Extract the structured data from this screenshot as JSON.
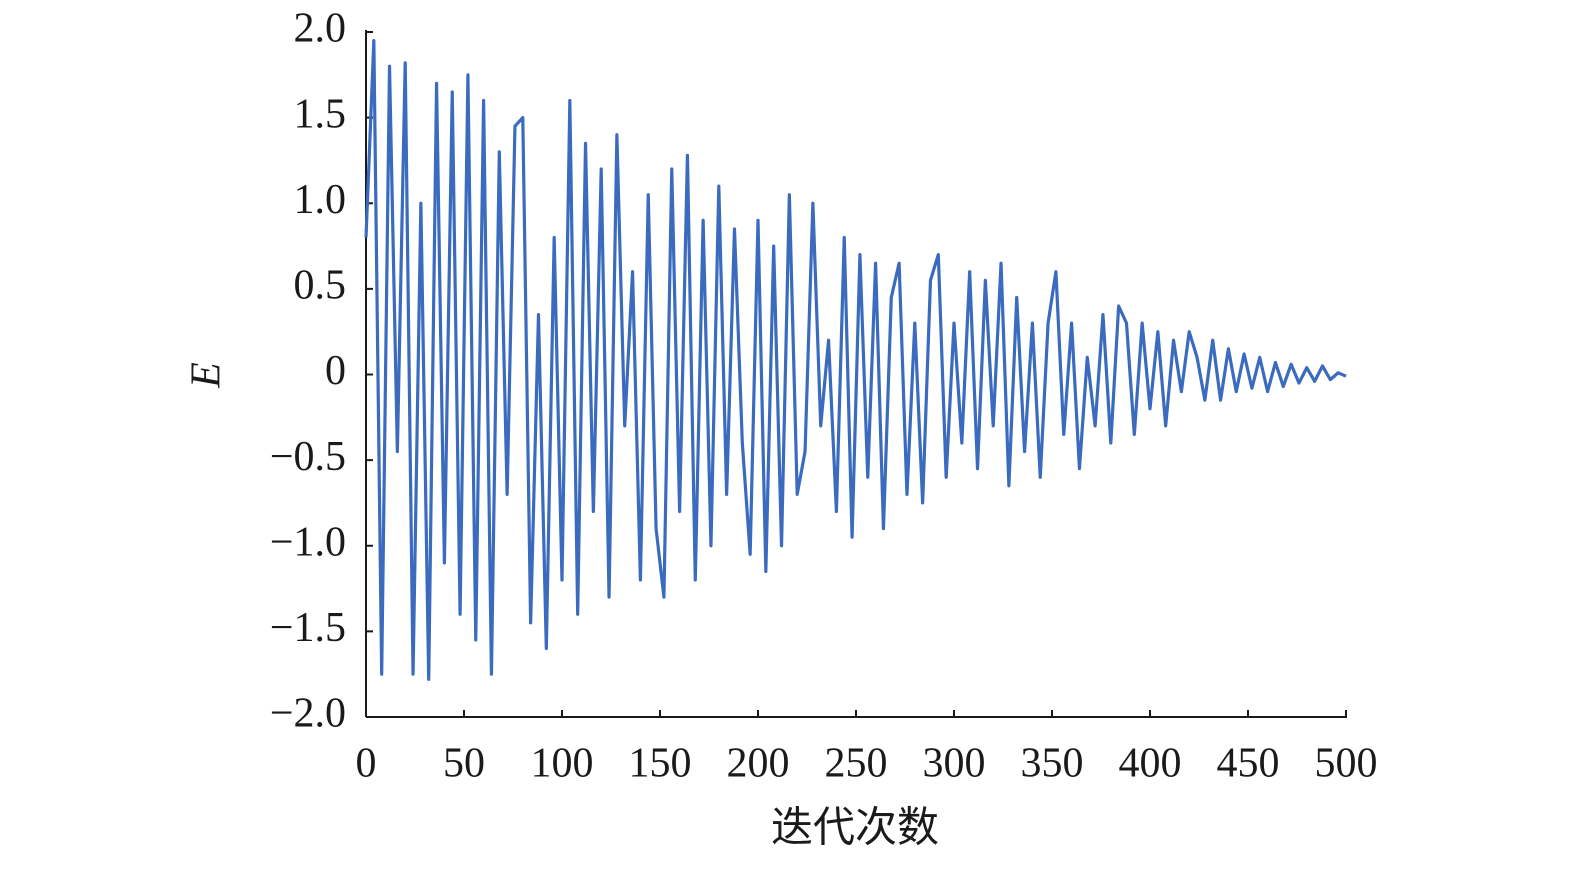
{
  "chart_data": {
    "type": "line",
    "x_label": "迭代次数",
    "y_label": "E",
    "xlim": [
      0,
      500
    ],
    "ylim": [
      -2.0,
      2.0
    ],
    "xticks": [
      0,
      50,
      100,
      150,
      200,
      250,
      300,
      350,
      400,
      450,
      500
    ],
    "yticks": [
      {
        "value": -2.0,
        "label": "−2.0"
      },
      {
        "value": -1.5,
        "label": "−1.5"
      },
      {
        "value": -1.0,
        "label": "−1.0"
      },
      {
        "value": -0.5,
        "label": "−0.5"
      },
      0,
      0.5,
      {
        "value": 1.0,
        "label": "1.0"
      },
      1.5,
      {
        "value": 2.0,
        "label": "2.0"
      }
    ],
    "grid": false,
    "x": [
      0,
      4,
      8,
      12,
      16,
      20,
      24,
      28,
      32,
      36,
      40,
      44,
      48,
      52,
      56,
      60,
      64,
      68,
      72,
      76,
      80,
      84,
      88,
      92,
      96,
      100,
      104,
      108,
      112,
      116,
      120,
      124,
      128,
      132,
      136,
      140,
      144,
      148,
      152,
      156,
      160,
      164,
      168,
      172,
      176,
      180,
      184,
      188,
      192,
      196,
      200,
      204,
      208,
      212,
      216,
      220,
      224,
      228,
      232,
      236,
      240,
      244,
      248,
      252,
      256,
      260,
      264,
      268,
      272,
      276,
      280,
      284,
      288,
      292,
      296,
      300,
      304,
      308,
      312,
      316,
      320,
      324,
      328,
      332,
      336,
      340,
      344,
      348,
      352,
      356,
      360,
      364,
      368,
      372,
      376,
      380,
      384,
      388,
      392,
      396,
      400,
      404,
      408,
      412,
      416,
      420,
      424,
      428,
      432,
      436,
      440,
      444,
      448,
      452,
      456,
      460,
      464,
      468,
      472,
      476,
      480,
      484,
      488,
      492,
      496,
      500
    ],
    "series": [
      {
        "color": "#3a6bbf",
        "values": [
          0.8,
          1.95,
          -1.75,
          1.8,
          -0.45,
          1.82,
          -1.75,
          1.0,
          -1.78,
          1.7,
          -1.1,
          1.65,
          -1.4,
          1.75,
          -1.55,
          1.6,
          -1.75,
          1.3,
          -0.7,
          1.45,
          1.5,
          -1.45,
          0.35,
          -1.6,
          0.8,
          -1.2,
          1.6,
          -1.4,
          1.35,
          -0.8,
          1.2,
          -1.3,
          1.4,
          -0.3,
          0.6,
          -1.2,
          1.05,
          -0.9,
          -1.3,
          1.2,
          -0.8,
          1.28,
          -1.2,
          0.9,
          -1.0,
          1.1,
          -0.7,
          0.85,
          -0.4,
          -1.05,
          0.9,
          -1.15,
          0.75,
          -1.0,
          1.05,
          -0.7,
          -0.45,
          1.0,
          -0.3,
          0.2,
          -0.8,
          0.8,
          -0.95,
          0.7,
          -0.6,
          0.65,
          -0.9,
          0.45,
          0.65,
          -0.7,
          0.3,
          -0.75,
          0.55,
          0.7,
          -0.6,
          0.3,
          -0.4,
          0.6,
          -0.55,
          0.55,
          -0.3,
          0.65,
          -0.65,
          0.45,
          -0.45,
          0.3,
          -0.6,
          0.3,
          0.6,
          -0.35,
          0.3,
          -0.55,
          0.1,
          -0.3,
          0.35,
          -0.4,
          0.4,
          0.3,
          -0.35,
          0.3,
          -0.2,
          0.25,
          -0.3,
          0.2,
          -0.1,
          0.25,
          0.1,
          -0.15,
          0.2,
          -0.15,
          0.15,
          -0.1,
          0.12,
          -0.08,
          0.1,
          -0.1,
          0.07,
          -0.07,
          0.06,
          -0.05,
          0.04,
          -0.04,
          0.05,
          -0.03,
          0.01,
          -0.01
        ]
      }
    ]
  }
}
